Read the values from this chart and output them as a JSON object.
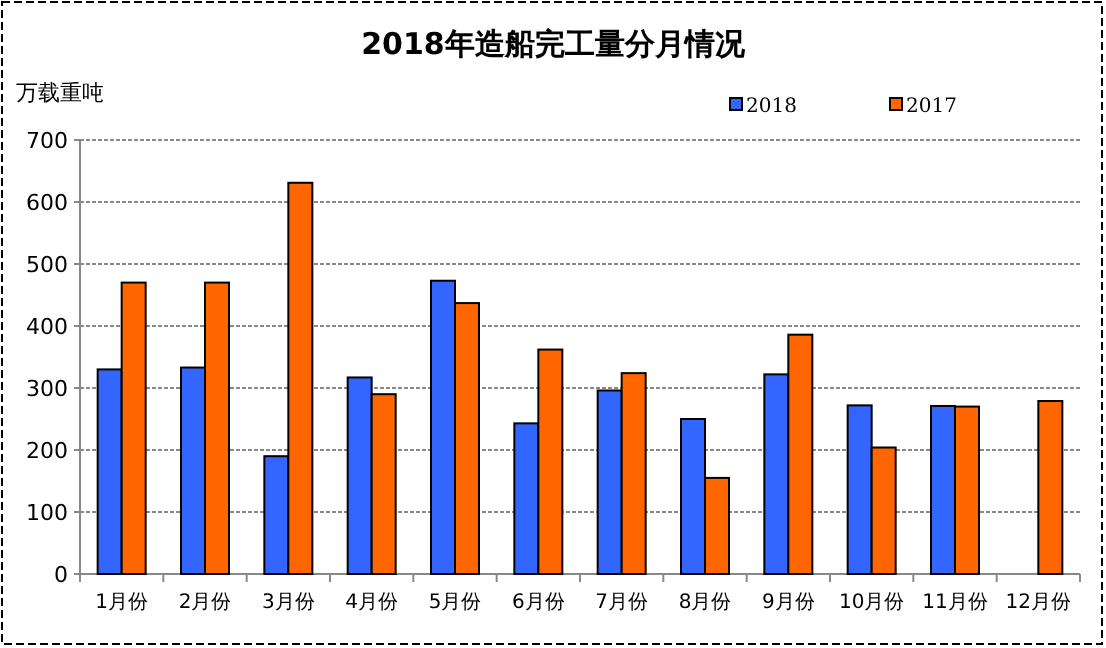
{
  "chart_data": {
    "type": "bar",
    "title": "2018年造船完工量分月情况",
    "ylabel": "万载重吨",
    "categories": [
      "1月份",
      "2月份",
      "3月份",
      "4月份",
      "5月份",
      "6月份",
      "7月份",
      "8月份",
      "9月份",
      "10月份",
      "11月份",
      "12月份"
    ],
    "series": [
      {
        "name": "2018",
        "color": "#3366ff",
        "values": [
          330,
          333,
          190,
          317,
          473,
          243,
          296,
          250,
          322,
          272,
          271,
          null
        ]
      },
      {
        "name": "2017",
        "color": "#ff6600",
        "values": [
          470,
          470,
          631,
          290,
          437,
          362,
          324,
          155,
          386,
          204,
          270,
          279
        ]
      }
    ],
    "ylim": [
      0,
      700
    ],
    "yticks": [
      0,
      100,
      200,
      300,
      400,
      500,
      600,
      700
    ],
    "grid": "y",
    "legend": "top right"
  }
}
